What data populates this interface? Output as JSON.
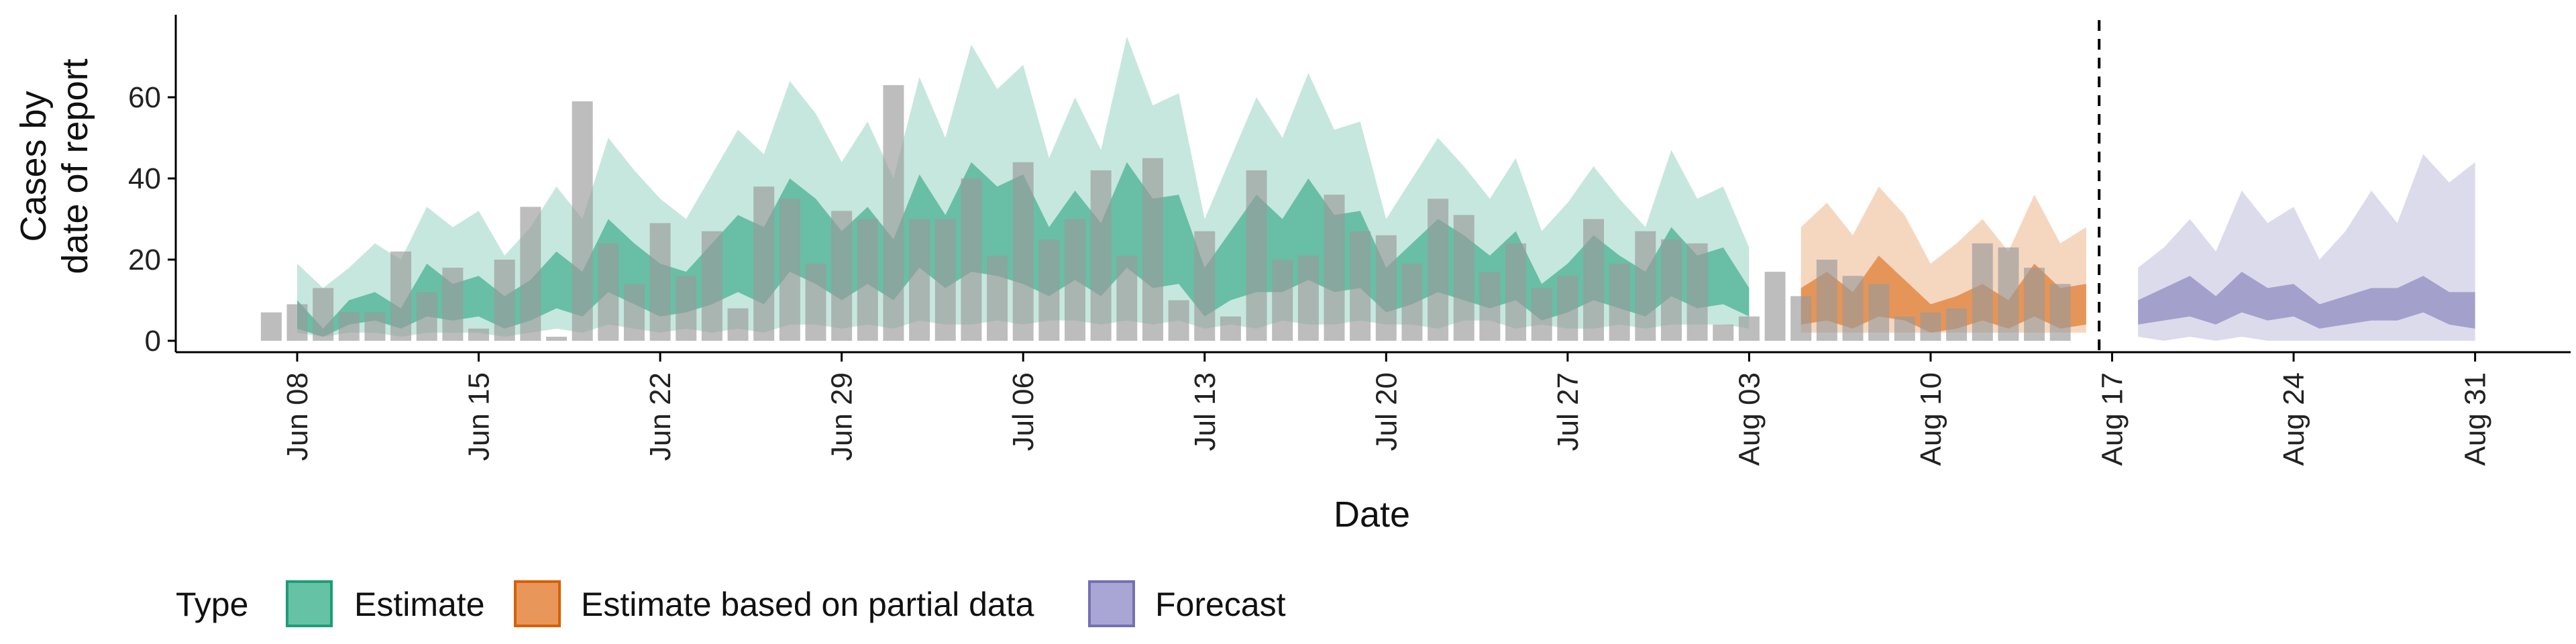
{
  "chart_data": {
    "type": "area",
    "xlabel": "Date",
    "ylabel_lines": [
      "Cases by",
      "date of report"
    ],
    "yticks": [
      0,
      20,
      40,
      60
    ],
    "ylim": [
      -6,
      79
    ],
    "xlim": [
      -7,
      85
    ],
    "xticks": [
      {
        "day": 0,
        "label": "Jun 08"
      },
      {
        "day": 7,
        "label": "Jun 15"
      },
      {
        "day": 14,
        "label": "Jun 22"
      },
      {
        "day": 21,
        "label": "Jun 29"
      },
      {
        "day": 28,
        "label": "Jul 06"
      },
      {
        "day": 35,
        "label": "Jul 13"
      },
      {
        "day": 42,
        "label": "Jul 20"
      },
      {
        "day": 49,
        "label": "Jul 27"
      },
      {
        "day": 56,
        "label": "Aug 03"
      },
      {
        "day": 63,
        "label": "Aug 10"
      },
      {
        "day": 70,
        "label": "Aug 17"
      },
      {
        "day": 77,
        "label": "Aug 24"
      },
      {
        "day": 84,
        "label": "Aug 31"
      }
    ],
    "forecast_date_day": 69.5,
    "colors": {
      "Estimate": "#1B9E77",
      "Estimate based on partial data": "#D95F02",
      "Forecast": "#7570B3",
      "reported": "#999999"
    },
    "reported_cases": [
      7,
      9,
      13,
      7,
      7,
      22,
      12,
      18,
      3,
      20,
      33,
      1,
      59,
      24,
      14,
      29,
      16,
      27,
      8,
      38,
      35,
      19,
      32,
      30,
      63,
      30,
      30,
      40,
      21,
      44,
      25,
      30,
      42,
      21,
      45,
      10,
      27,
      6,
      42,
      20,
      21,
      36,
      27,
      26,
      19,
      35,
      31,
      17,
      24,
      13,
      16,
      30,
      19,
      27,
      25,
      24,
      4,
      6,
      17,
      11,
      20,
      16,
      14,
      6,
      7,
      8,
      24,
      23,
      18,
      14
    ],
    "series": [
      {
        "name": "Estimate",
        "days_start": 0,
        "lower90": [
          2,
          1,
          2,
          2,
          1,
          2,
          2,
          2,
          1,
          2,
          3,
          2,
          4,
          3,
          2,
          3,
          2,
          3,
          2,
          4,
          4,
          3,
          4,
          3,
          5,
          4,
          4,
          5,
          4,
          5,
          5,
          4,
          5,
          4,
          5,
          3,
          4,
          3,
          5,
          4,
          4,
          5,
          4,
          4,
          3,
          5,
          5,
          3,
          4,
          3,
          3,
          4,
          3,
          4,
          4,
          4,
          3
        ],
        "upper90": [
          19,
          13,
          18,
          24,
          20,
          33,
          28,
          32,
          21,
          28,
          38,
          30,
          50,
          42,
          35,
          30,
          41,
          52,
          46,
          64,
          56,
          44,
          54,
          40,
          65,
          50,
          73,
          62,
          68,
          45,
          60,
          47,
          75,
          58,
          61,
          30,
          45,
          60,
          50,
          66,
          52,
          54,
          30,
          40,
          50,
          43,
          35,
          45,
          27,
          34,
          43,
          35,
          28,
          47,
          35,
          38,
          23
        ],
        "lower50": [
          3,
          1,
          4,
          5,
          3,
          6,
          5,
          6,
          3,
          5,
          8,
          6,
          12,
          9,
          6,
          7,
          9,
          12,
          9,
          17,
          14,
          10,
          14,
          10,
          18,
          13,
          17,
          16,
          14,
          11,
          15,
          11,
          18,
          13,
          14,
          6,
          10,
          12,
          12,
          15,
          12,
          13,
          7,
          9,
          12,
          10,
          8,
          10,
          5,
          7,
          10,
          8,
          6,
          11,
          8,
          9,
          6
        ],
        "upper50": [
          10,
          3,
          10,
          12,
          8,
          19,
          14,
          16,
          11,
          15,
          22,
          17,
          30,
          24,
          19,
          17,
          24,
          31,
          28,
          40,
          35,
          27,
          33,
          25,
          41,
          31,
          44,
          38,
          41,
          28,
          37,
          29,
          44,
          35,
          36,
          18,
          27,
          36,
          30,
          40,
          31,
          32,
          18,
          24,
          30,
          26,
          21,
          27,
          14,
          19,
          26,
          21,
          17,
          28,
          21,
          23,
          13
        ]
      },
      {
        "name": "Estimate based on partial data",
        "days_start": 58,
        "lower90": [
          2,
          2,
          2,
          2,
          2,
          2,
          2,
          2,
          2,
          2,
          2,
          2
        ],
        "upper90": [
          28,
          34,
          26,
          38,
          31,
          19,
          24,
          30,
          22,
          36,
          24,
          28
        ],
        "lower50": [
          4,
          5,
          3,
          6,
          5,
          2,
          3,
          5,
          3,
          6,
          3,
          4
        ],
        "upper50": [
          13,
          17,
          12,
          21,
          15,
          9,
          11,
          14,
          10,
          19,
          13,
          14
        ]
      },
      {
        "name": "Forecast",
        "days_start": 71,
        "lower90": [
          1,
          0,
          1,
          0,
          1,
          0,
          0,
          0,
          0,
          0,
          0,
          0,
          0,
          0
        ],
        "upper90": [
          18,
          23,
          30,
          22,
          37,
          29,
          33,
          20,
          27,
          37,
          29,
          46,
          39,
          44
        ],
        "lower50": [
          4,
          5,
          6,
          4,
          7,
          5,
          6,
          3,
          4,
          5,
          5,
          7,
          4,
          3
        ],
        "upper50": [
          10,
          13,
          16,
          11,
          17,
          13,
          14,
          9,
          11,
          13,
          13,
          16,
          12,
          12
        ]
      }
    ]
  },
  "legend": {
    "title": "Type",
    "items": [
      {
        "label": "Estimate",
        "fill": "#66C2A5",
        "stroke": "#1B9E77"
      },
      {
        "label": "Estimate based on partial data",
        "fill": "#E8965A",
        "stroke": "#D95F02"
      },
      {
        "label": "Forecast",
        "fill": "#A9A6D6",
        "stroke": "#7570B3"
      }
    ]
  }
}
